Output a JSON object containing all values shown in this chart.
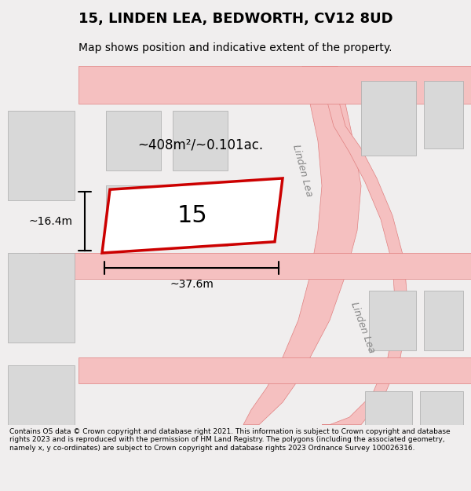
{
  "title": "15, LINDEN LEA, BEDWORTH, CV12 8UD",
  "subtitle": "Map shows position and indicative extent of the property.",
  "footer": "Contains OS data © Crown copyright and database right 2021. This information is subject to Crown copyright and database rights 2023 and is reproduced with the permission of HM Land Registry. The polygons (including the associated geometry, namely x, y co-ordinates) are subject to Crown copyright and database rights 2023 Ordnance Survey 100026316.",
  "bg_color": "#f0eeee",
  "map_bg": "#f7f5f5",
  "plot_color": "#ffffff",
  "road_color": "#f5c0c0",
  "road_edge_color": "#e08080",
  "building_color": "#d8d8d8",
  "highlight_color": "#cc0000",
  "highlight_fill": "#ffffff",
  "area_text": "~408m²/~0.101ac.",
  "number_text": "15",
  "dim_width": "~37.6m",
  "dim_height": "~16.4m",
  "road_label_1": "Linden Lea",
  "road_label_2": "Linden Lea",
  "figsize": [
    6.0,
    6.25
  ],
  "dpi": 100
}
